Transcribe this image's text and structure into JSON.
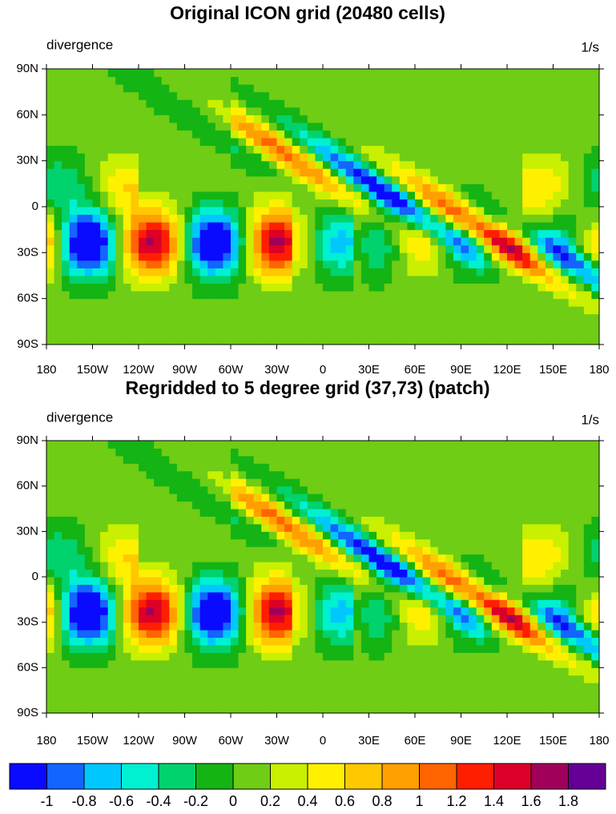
{
  "chart_data": [
    {
      "type": "contour-map",
      "title": "Original ICON grid (20480 cells)",
      "left_label": "divergence",
      "right_label": "1/s",
      "xlim": [
        -180,
        180
      ],
      "ylim": [
        -90,
        90
      ],
      "xticks": [
        {
          "value": -180,
          "label": "180"
        },
        {
          "value": -150,
          "label": "150W"
        },
        {
          "value": -120,
          "label": "120W"
        },
        {
          "value": -90,
          "label": "90W"
        },
        {
          "value": -60,
          "label": "60W"
        },
        {
          "value": -30,
          "label": "30W"
        },
        0,
        {
          "value": 30,
          "label": "30E"
        },
        {
          "value": 60,
          "label": "60E"
        },
        {
          "value": 90,
          "label": "90E"
        },
        {
          "value": 120,
          "label": "120E"
        },
        {
          "value": 150,
          "label": "150E"
        },
        {
          "value": 180,
          "label": "180"
        }
      ],
      "yticks": [
        {
          "value": 90,
          "label": "90N"
        },
        {
          "value": 60,
          "label": "60N"
        },
        {
          "value": 30,
          "label": "30N"
        },
        0,
        {
          "value": -30,
          "label": "30S"
        },
        {
          "value": -60,
          "label": "60S"
        },
        {
          "value": -90,
          "label": "90S"
        }
      ]
    },
    {
      "type": "contour-map",
      "title": "Regridded to 5 degree grid (37,73) (patch)",
      "left_label": "divergence",
      "right_label": "1/s",
      "xlim": [
        -180,
        180
      ],
      "ylim": [
        -90,
        90
      ],
      "xticks": [
        {
          "value": -180,
          "label": "180"
        },
        {
          "value": -150,
          "label": "150W"
        },
        {
          "value": -120,
          "label": "120W"
        },
        {
          "value": -90,
          "label": "90W"
        },
        {
          "value": -60,
          "label": "60W"
        },
        {
          "value": -30,
          "label": "30W"
        },
        0,
        {
          "value": 30,
          "label": "30E"
        },
        {
          "value": 60,
          "label": "60E"
        },
        {
          "value": 90,
          "label": "90E"
        },
        {
          "value": 120,
          "label": "120E"
        },
        {
          "value": 150,
          "label": "150E"
        },
        {
          "value": 180,
          "label": "180"
        }
      ],
      "yticks": [
        {
          "value": 90,
          "label": "90N"
        },
        {
          "value": 60,
          "label": "60N"
        },
        {
          "value": 30,
          "label": "30N"
        },
        0,
        {
          "value": -30,
          "label": "30S"
        },
        {
          "value": -60,
          "label": "60S"
        },
        {
          "value": -90,
          "label": "90S"
        }
      ]
    }
  ],
  "colorbar": {
    "levels": [
      -1,
      -0.8,
      -0.6,
      -0.4,
      -0.2,
      0,
      0.2,
      0.4,
      0.6,
      0.8,
      1,
      1.2,
      1.4,
      1.6,
      1.8
    ],
    "colors": [
      "#0a0aff",
      "#1464ff",
      "#00c8ff",
      "#00f0d2",
      "#00d26e",
      "#14b414",
      "#6ecd14",
      "#c8f000",
      "#fff000",
      "#ffc800",
      "#ffa000",
      "#ff6400",
      "#ff1e00",
      "#dc0028",
      "#a0005a",
      "#640096"
    ]
  }
}
